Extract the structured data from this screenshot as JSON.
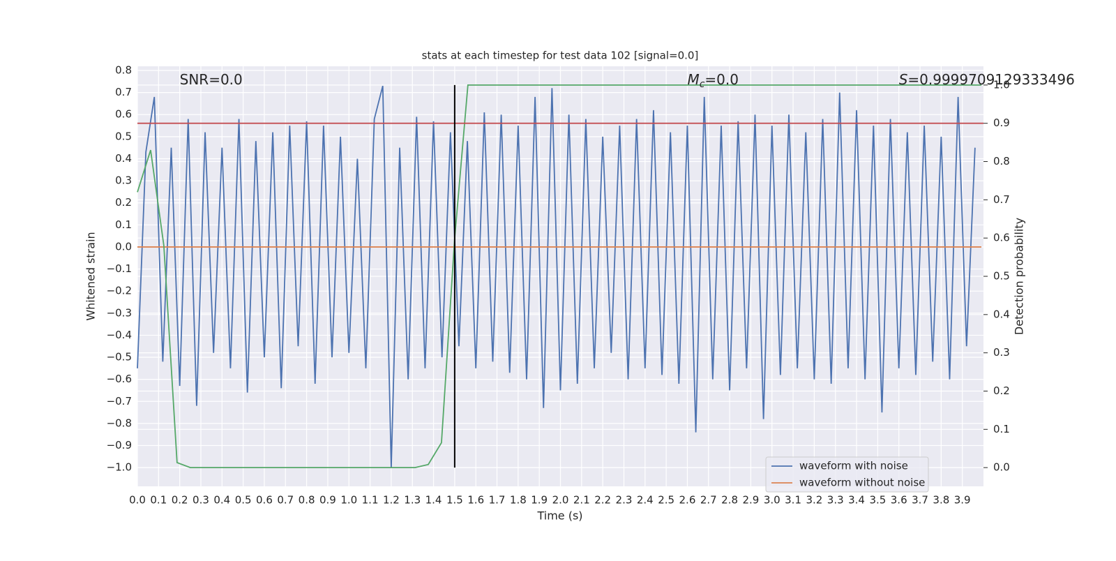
{
  "chart_data": {
    "type": "line",
    "title": "stats at each timestep for test data 102 [signal=0.0]",
    "x_label": "Time (s)",
    "y_label": "Whitened strain",
    "y2_label": "Detection probability",
    "annotations": [
      {
        "text": "SNR=0.0",
        "x": 0.2
      },
      {
        "symbol": "M",
        "subscript": "c",
        "text": "=0.0",
        "x": 2.6
      },
      {
        "symbol": "S",
        "text": "=0.9999709129333496",
        "x": 3.6
      }
    ],
    "xlim": [
      0,
      4.0
    ],
    "ylim": [
      -1.085,
      0.819
    ],
    "y2lim": [
      -0.049,
      1.049
    ],
    "grid": true,
    "legend": "lower right",
    "xticks": [
      {
        "value": 0,
        "label": "0.0"
      },
      {
        "value": 0.1,
        "label": "0.1"
      },
      {
        "value": 0.2,
        "label": "0.2"
      },
      {
        "value": 0.3,
        "label": "0.3"
      },
      {
        "value": 0.4,
        "label": "0.4"
      },
      {
        "value": 0.5,
        "label": "0.5"
      },
      {
        "value": 0.6,
        "label": "0.6"
      },
      {
        "value": 0.7,
        "label": "0.7"
      },
      {
        "value": 0.8,
        "label": "0.8"
      },
      {
        "value": 0.9,
        "label": "0.9"
      },
      {
        "value": 1.0,
        "label": "1.0"
      },
      {
        "value": 1.1,
        "label": "1.1"
      },
      {
        "value": 1.2,
        "label": "1.2"
      },
      {
        "value": 1.3,
        "label": "1.3"
      },
      {
        "value": 1.4,
        "label": "1.4"
      },
      {
        "value": 1.5,
        "label": "1.5"
      },
      {
        "value": 1.6,
        "label": "1.6"
      },
      {
        "value": 1.7,
        "label": "1.7"
      },
      {
        "value": 1.8,
        "label": "1.8"
      },
      {
        "value": 1.9,
        "label": "1.9"
      },
      {
        "value": 2.0,
        "label": "2.0"
      },
      {
        "value": 2.1,
        "label": "2.1"
      },
      {
        "value": 2.2,
        "label": "2.2"
      },
      {
        "value": 2.3,
        "label": "2.3"
      },
      {
        "value": 2.4,
        "label": "2.4"
      },
      {
        "value": 2.5,
        "label": "2.5"
      },
      {
        "value": 2.6,
        "label": "2.6"
      },
      {
        "value": 2.7,
        "label": "2.7"
      },
      {
        "value": 2.8,
        "label": "2.8"
      },
      {
        "value": 2.9,
        "label": "2.9"
      },
      {
        "value": 3.0,
        "label": "3.0"
      },
      {
        "value": 3.1,
        "label": "3.1"
      },
      {
        "value": 3.2,
        "label": "3.2"
      },
      {
        "value": 3.3,
        "label": "3.3"
      },
      {
        "value": 3.4,
        "label": "3.4"
      },
      {
        "value": 3.5,
        "label": "3.5"
      },
      {
        "value": 3.6,
        "label": "3.6"
      },
      {
        "value": 3.7,
        "label": "3.7"
      },
      {
        "value": 3.8,
        "label": "3.8"
      },
      {
        "value": 3.9,
        "label": "3.9"
      }
    ],
    "yticks": [
      {
        "value": -1.0,
        "label": "−1.0"
      },
      {
        "value": -0.9,
        "label": "−0.9"
      },
      {
        "value": -0.8,
        "label": "−0.8"
      },
      {
        "value": -0.7,
        "label": "−0.7"
      },
      {
        "value": -0.6,
        "label": "−0.6"
      },
      {
        "value": -0.5,
        "label": "−0.5"
      },
      {
        "value": -0.4,
        "label": "−0.4"
      },
      {
        "value": -0.3,
        "label": "−0.3"
      },
      {
        "value": -0.2,
        "label": "−0.2"
      },
      {
        "value": -0.1,
        "label": "−0.1"
      },
      {
        "value": 0,
        "label": "0.0"
      },
      {
        "value": 0.1,
        "label": "0.1"
      },
      {
        "value": 0.2,
        "label": "0.2"
      },
      {
        "value": 0.3,
        "label": "0.3"
      },
      {
        "value": 0.4,
        "label": "0.4"
      },
      {
        "value": 0.5,
        "label": "0.5"
      },
      {
        "value": 0.6,
        "label": "0.6"
      },
      {
        "value": 0.7,
        "label": "0.7"
      },
      {
        "value": 0.8,
        "label": "0.8"
      }
    ],
    "y2ticks": [
      {
        "value": 0,
        "label": "0.0"
      },
      {
        "value": 0.1,
        "label": "0.1"
      },
      {
        "value": 0.2,
        "label": "0.2"
      },
      {
        "value": 0.3,
        "label": "0.3"
      },
      {
        "value": 0.4,
        "label": "0.4"
      },
      {
        "value": 0.5,
        "label": "0.5"
      },
      {
        "value": 0.6,
        "label": "0.6"
      },
      {
        "value": 0.7,
        "label": "0.7"
      },
      {
        "value": 0.8,
        "label": "0.8"
      },
      {
        "value": 0.9,
        "label": "0.9"
      },
      {
        "value": 1.0,
        "label": "1.0"
      }
    ],
    "series": [
      {
        "name": "waveform with noise",
        "color": "#4c72b0",
        "x": [
          0,
          0.04,
          0.08,
          0.12,
          0.16,
          0.2,
          0.24,
          0.28,
          0.32,
          0.36,
          0.4,
          0.44,
          0.48,
          0.52,
          0.56,
          0.6,
          0.64,
          0.68,
          0.72,
          0.76,
          0.8,
          0.84,
          0.88,
          0.92,
          0.96,
          1.0,
          1.04,
          1.08,
          1.12,
          1.16,
          1.2,
          1.24,
          1.28,
          1.32,
          1.36,
          1.4,
          1.44,
          1.48,
          1.52,
          1.56,
          1.6,
          1.64,
          1.68,
          1.72,
          1.76,
          1.8,
          1.84,
          1.88,
          1.92,
          1.96,
          2.0,
          2.04,
          2.08,
          2.12,
          2.16,
          2.2,
          2.24,
          2.28,
          2.32,
          2.36,
          2.4,
          2.44,
          2.48,
          2.52,
          2.56,
          2.6,
          2.64,
          2.68,
          2.72,
          2.76,
          2.8,
          2.84,
          2.88,
          2.92,
          2.96,
          3.0,
          3.04,
          3.08,
          3.12,
          3.16,
          3.2,
          3.24,
          3.28,
          3.32,
          3.36,
          3.4,
          3.44,
          3.48,
          3.52,
          3.56,
          3.6,
          3.64,
          3.68,
          3.72,
          3.76,
          3.8,
          3.84,
          3.88,
          3.92,
          3.96
        ],
        "values": [
          -0.55,
          0.43,
          0.68,
          -0.52,
          0.45,
          -0.63,
          0.58,
          -0.72,
          0.52,
          -0.48,
          0.45,
          -0.55,
          0.58,
          -0.66,
          0.48,
          -0.5,
          0.52,
          -0.64,
          0.55,
          -0.45,
          0.57,
          -0.62,
          0.55,
          -0.5,
          0.5,
          -0.48,
          0.4,
          -0.55,
          0.58,
          0.73,
          -1.0,
          0.45,
          -0.6,
          0.59,
          -0.55,
          0.57,
          -0.5,
          0.52,
          -0.45,
          0.48,
          -0.55,
          0.61,
          -0.52,
          0.6,
          -0.57,
          0.55,
          -0.6,
          0.68,
          -0.73,
          0.72,
          -0.65,
          0.6,
          -0.62,
          0.58,
          -0.55,
          0.5,
          -0.48,
          0.55,
          -0.6,
          0.58,
          -0.55,
          0.62,
          -0.58,
          0.52,
          -0.62,
          0.55,
          -0.84,
          0.68,
          -0.6,
          0.55,
          -0.65,
          0.57,
          -0.55,
          0.6,
          -0.78,
          0.55,
          -0.58,
          0.6,
          -0.55,
          0.52,
          -0.6,
          0.58,
          -0.62,
          0.7,
          -0.55,
          0.62,
          -0.6,
          0.55,
          -0.75,
          0.58,
          -0.55,
          0.52,
          -0.58,
          0.55,
          -0.52,
          0.5,
          -0.6,
          0.68,
          -0.45,
          0.45
        ]
      },
      {
        "name": "waveform without noise",
        "color": "#dd8452",
        "x": [
          0,
          3.99
        ],
        "values": [
          0,
          0
        ]
      },
      {
        "color": "#55a868",
        "axis": "y2",
        "x": [
          0,
          0.0625,
          0.125,
          0.1875,
          0.25,
          1.3125,
          1.375,
          1.4375,
          1.5,
          1.5625,
          3.99
        ],
        "values": [
          0.72,
          0.83,
          0.58,
          0.013,
          0,
          0,
          0.008,
          0.065,
          0.6,
          1.0,
          1.0
        ]
      }
    ],
    "hlines": [
      {
        "axis": "y2",
        "value": 0.9,
        "color": "#c44e52"
      }
    ],
    "vlines": [
      {
        "axis": "y2",
        "x": 1.5,
        "from": 0,
        "to": 1.0,
        "color": "#000000"
      }
    ]
  }
}
